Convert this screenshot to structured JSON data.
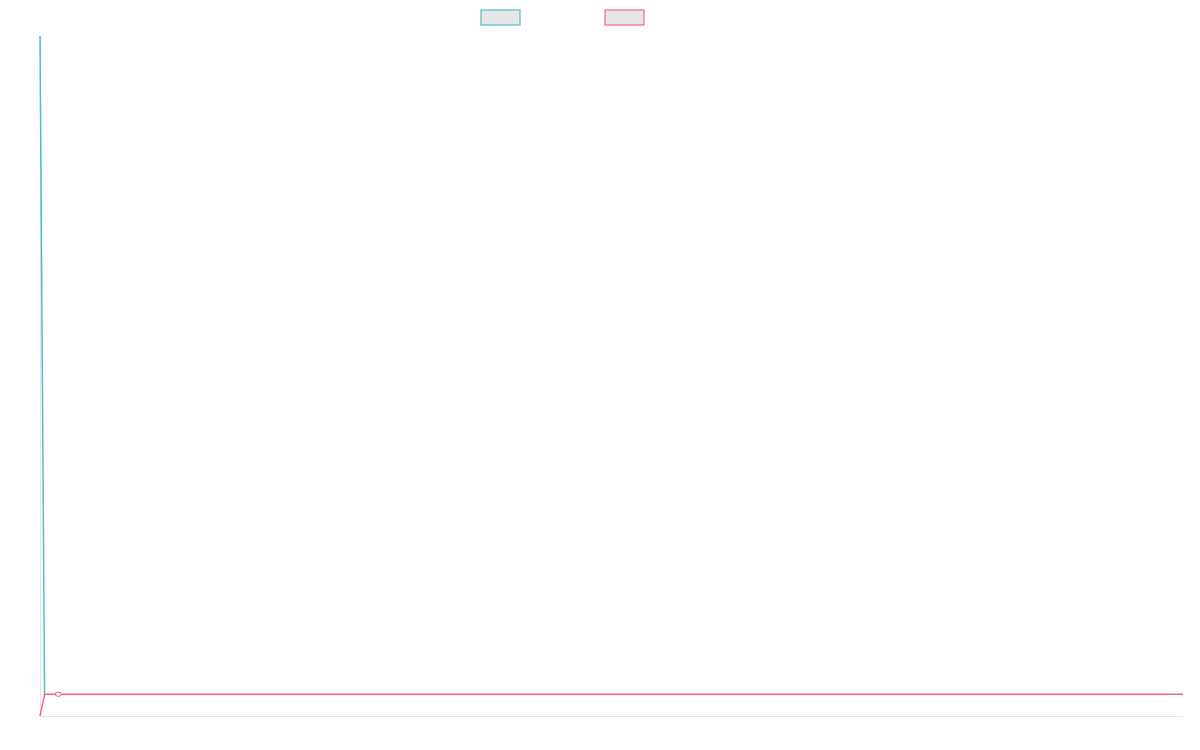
{
  "chart_data": {
    "type": "line",
    "title": "",
    "xlabel": "",
    "ylabel": "",
    "xlim": [
      0,
      100
    ],
    "ylim": [
      0,
      100
    ],
    "grid": false,
    "legend_placement": "top",
    "series": [
      {
        "color": "#4bc0c0",
        "x": [
          0,
          0.4,
          100
        ],
        "y": [
          100,
          3.2,
          3.2
        ],
        "markers_at": []
      },
      {
        "color": "#ff6384",
        "x": [
          0,
          0.4,
          1.6,
          100
        ],
        "y": [
          0,
          3.2,
          3.2,
          3.2
        ],
        "markers_at": [
          2
        ]
      }
    ]
  }
}
